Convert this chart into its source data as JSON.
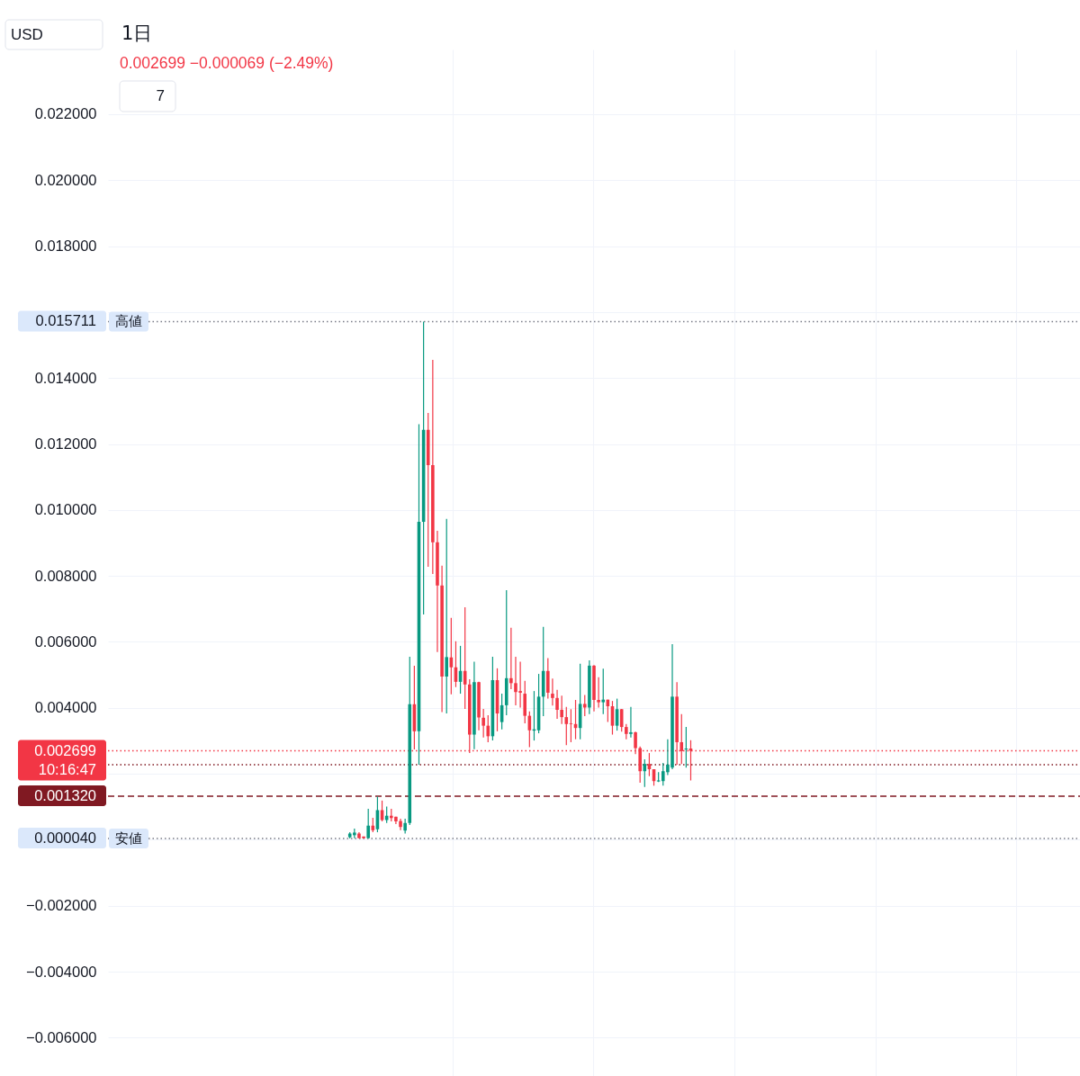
{
  "chart_data": {
    "type": "candlestick",
    "title": "1日",
    "subtitle": "0.002699 −0.000069 (−2.49%)",
    "annotations": [
      "USD",
      "7",
      "0.015711",
      "0.002699",
      "10:16:47",
      "0.001320",
      "0.000040"
    ],
    "categories": [
      null,
      null,
      null,
      null,
      null,
      null,
      null,
      null,
      null,
      null,
      null,
      null,
      null,
      null,
      null,
      null,
      null,
      null,
      null,
      null,
      null,
      null,
      null,
      null,
      null,
      null,
      null,
      null,
      null,
      null,
      null,
      null,
      null,
      null,
      null,
      null,
      null,
      null,
      null,
      null,
      null,
      null,
      null,
      null,
      null,
      null,
      null,
      null,
      null,
      null,
      null,
      null,
      null,
      null,
      null,
      null,
      null,
      null,
      null,
      null,
      null,
      null,
      null,
      null,
      null,
      null,
      null,
      null,
      null,
      null,
      null,
      null,
      null,
      null,
      null,
      null,
      null,
      null,
      null,
      null,
      null,
      null,
      null,
      null,
      null,
      null,
      null,
      null,
      null,
      null,
      null,
      null,
      null,
      null,
      null,
      null,
      null,
      null,
      null,
      null,
      null,
      null,
      null,
      null,
      null,
      null,
      null,
      null,
      null,
      null,
      null,
      null,
      null,
      null,
      null,
      null,
      null,
      null,
      null,
      null,
      null,
      null,
      null,
      null,
      null,
      null,
      null,
      null,
      null,
      null,
      null,
      null,
      null,
      null,
      null,
      null,
      null,
      null,
      null,
      null,
      null,
      null,
      null,
      null,
      null,
      null,
      null,
      null,
      null,
      null,
      null,
      null,
      null,
      null,
      null,
      null,
      null,
      null,
      null,
      null,
      null,
      null,
      null,
      null,
      null,
      null,
      null,
      null,
      null,
      null,
      null,
      null,
      null,
      null,
      null,
      null,
      null,
      null,
      null,
      null,
      null,
      null,
      null,
      null,
      null,
      null,
      null,
      null,
      null,
      null,
      null,
      null,
      null,
      null,
      null,
      null,
      null,
      null,
      null,
      null,
      null,
      null,
      null,
      null,
      null,
      null,
      null,
      null,
      null,
      null,
      null
    ],
    "ohlc": [
      null,
      null,
      null,
      null,
      null,
      null,
      null,
      null,
      null,
      null,
      null,
      null,
      null,
      null,
      null,
      null,
      null,
      null,
      null,
      null,
      null,
      null,
      null,
      null,
      null,
      null,
      null,
      null,
      null,
      null,
      null,
      null,
      null,
      null,
      null,
      null,
      null,
      null,
      null,
      null,
      null,
      null,
      null,
      null,
      null,
      null,
      null,
      null,
      null,
      null,
      null,
      null,
      [
        8e-05,
        0.00023,
        4e-05,
        0.00019
      ],
      [
        0.00014,
        0.00034,
        5e-05,
        0.00022
      ],
      [
        0.00019,
        0.00023,
        5e-05,
        5e-05
      ],
      [
        0.0001,
        0.0001,
        4e-05,
        5e-05
      ],
      [
        5e-05,
        0.00094,
        5e-05,
        0.00043
      ],
      [
        0.00043,
        0.00067,
        0.00023,
        0.00029
      ],
      [
        0.00032,
        0.00131,
        0.00023,
        0.0009
      ],
      [
        0.0009,
        0.00119,
        0.00056,
        0.0006
      ],
      [
        0.0006,
        0.00101,
        0.00051,
        0.00073
      ],
      [
        0.00073,
        0.00094,
        0.00056,
        0.00066
      ],
      [
        0.0007,
        0.0007,
        0.00048,
        0.00056
      ],
      [
        0.00057,
        0.00064,
        0.00029,
        0.00039
      ],
      [
        0.00028,
        0.00064,
        0.00019,
        0.00051
      ],
      [
        0.00051,
        0.00555,
        0.00045,
        0.00411
      ],
      [
        0.00411,
        0.00528,
        0.00274,
        0.00329
      ],
      [
        0.00329,
        0.0126,
        0.00228,
        0.00964
      ],
      [
        0.00964,
        0.015711,
        0.00683,
        0.01243
      ],
      [
        0.01243,
        0.01294,
        0.00828,
        0.01136
      ],
      [
        0.01136,
        0.01455,
        0.00806,
        0.00902
      ],
      [
        0.00902,
        0.00937,
        0.00569,
        0.00771
      ],
      [
        0.00771,
        0.00831,
        0.00387,
        0.00495
      ],
      [
        0.00495,
        0.00973,
        0.00383,
        0.00554
      ],
      [
        0.00553,
        0.00673,
        0.00441,
        0.00523
      ],
      [
        0.00523,
        0.00602,
        0.00463,
        0.00479
      ],
      [
        0.00479,
        0.00588,
        0.00443,
        0.00512
      ],
      [
        0.00512,
        0.00705,
        0.00397,
        0.00471
      ],
      [
        0.00471,
        0.00487,
        0.00263,
        0.00319
      ],
      [
        0.00319,
        0.0054,
        0.00275,
        0.00478
      ],
      [
        0.00478,
        0.00479,
        0.00332,
        0.00371
      ],
      [
        0.0037,
        0.00397,
        0.0031,
        0.00346
      ],
      [
        0.00346,
        0.00378,
        0.00296,
        0.00314
      ],
      [
        0.00314,
        0.00555,
        0.00301,
        0.00484
      ],
      [
        0.00484,
        0.0052,
        0.00329,
        0.00383
      ],
      [
        0.00357,
        0.00443,
        0.00335,
        0.00408
      ],
      [
        0.00408,
        0.00757,
        0.00378,
        0.0049
      ],
      [
        0.0049,
        0.00643,
        0.00457,
        0.00475
      ],
      [
        0.00475,
        0.00555,
        0.00408,
        0.00448
      ],
      [
        0.00451,
        0.0054,
        0.00401,
        0.00446
      ],
      [
        0.00443,
        0.00482,
        0.00353,
        0.00376
      ],
      [
        0.00376,
        0.00389,
        0.00281,
        0.00332
      ],
      [
        0.00331,
        0.00451,
        0.00301,
        0.00335
      ],
      [
        0.00332,
        0.00503,
        0.00323,
        0.00434
      ],
      [
        0.00434,
        0.00646,
        0.00375,
        0.00512
      ],
      [
        0.00512,
        0.00551,
        0.00428,
        0.00446
      ],
      [
        0.00443,
        0.00489,
        0.00407,
        0.0043
      ],
      [
        0.0043,
        0.00455,
        0.00367,
        0.00394
      ],
      [
        0.00394,
        0.00437,
        0.00351,
        0.00372
      ],
      [
        0.00372,
        0.00403,
        0.00287,
        0.00351
      ],
      [
        0.00353,
        0.00396,
        0.00296,
        0.00351
      ],
      [
        0.00351,
        0.00424,
        0.00305,
        0.00339
      ],
      [
        0.00339,
        0.00534,
        0.00305,
        0.00412
      ],
      [
        0.00412,
        0.00439,
        0.00375,
        0.00401
      ],
      [
        0.00401,
        0.00544,
        0.00381,
        0.00528
      ],
      [
        0.00528,
        0.0053,
        0.00389,
        0.00424
      ],
      [
        0.00424,
        0.00493,
        0.00401,
        0.00417
      ],
      [
        0.00417,
        0.00519,
        0.00381,
        0.00425
      ],
      [
        0.00425,
        0.00425,
        0.00357,
        0.00405
      ],
      [
        0.00405,
        0.00421,
        0.00319,
        0.00346
      ],
      [
        0.00346,
        0.00428,
        0.00331,
        0.00396
      ],
      [
        0.00396,
        0.00397,
        0.00328,
        0.00342
      ],
      [
        0.00342,
        0.00351,
        0.00305,
        0.00321
      ],
      [
        0.00321,
        0.00403,
        0.0031,
        0.00326
      ],
      [
        0.00326,
        0.00328,
        0.0026,
        0.00278
      ],
      [
        0.00278,
        0.00283,
        0.00173,
        0.00208
      ],
      [
        0.00208,
        0.00244,
        0.0016,
        0.0023
      ],
      [
        0.0023,
        0.00263,
        0.00193,
        0.00214
      ],
      [
        0.00214,
        0.00214,
        0.00164,
        0.00178
      ],
      [
        0.00177,
        0.00205,
        0.00175,
        0.0018
      ],
      [
        0.00178,
        0.00233,
        0.00164,
        0.00208
      ],
      [
        0.00205,
        0.00305,
        0.00196,
        0.00228
      ],
      [
        0.00219,
        0.00593,
        0.00214,
        0.00434
      ],
      [
        0.00434,
        0.00478,
        0.00228,
        0.00296
      ],
      [
        0.00296,
        0.00381,
        0.0023,
        0.00269
      ],
      [
        0.00274,
        0.00342,
        0.00219,
        0.002768
      ],
      [
        0.002768,
        0.00302,
        0.0018,
        0.002699
      ],
      null,
      null,
      null,
      null,
      null,
      null,
      null,
      null,
      null,
      null,
      null,
      null,
      null,
      null,
      null,
      null,
      null,
      null,
      null,
      null,
      null,
      null,
      null,
      null,
      null,
      null,
      null,
      null,
      null,
      null,
      null,
      null,
      null,
      null,
      null,
      null,
      null,
      null,
      null,
      null,
      null,
      null,
      null,
      null,
      null,
      null,
      null,
      null,
      null,
      null,
      null,
      null,
      null,
      null,
      null,
      null,
      null,
      null,
      null,
      null,
      null,
      null,
      null,
      null,
      null,
      null,
      null,
      null,
      null,
      null,
      null,
      null,
      null,
      null,
      null,
      null,
      null,
      null,
      null,
      null,
      null,
      null,
      null,
      null
    ],
    "colors": [
      null,
      null,
      null,
      null,
      null,
      null,
      null,
      null,
      null,
      null,
      null,
      null,
      null,
      null,
      null,
      null,
      null,
      null,
      null,
      null,
      null,
      null,
      null,
      null,
      null,
      null,
      null,
      null,
      null,
      null,
      null,
      null,
      null,
      null,
      null,
      null,
      null,
      null,
      null,
      null,
      null,
      null,
      null,
      null,
      null,
      null,
      null,
      null,
      null,
      null,
      null,
      null,
      "#089981",
      "#089981",
      "#f23645",
      "#f23645",
      "#089981",
      "#f23645",
      "#089981",
      "#f23645",
      "#089981",
      "#f23645",
      "#f23645",
      "#f23645",
      "#089981",
      "#089981",
      "#f23645",
      "#089981",
      "#089981",
      "#f23645",
      "#f23645",
      "#f23645",
      "#f23645",
      "#089981",
      "#f23645",
      "#f23645",
      "#089981",
      "#f23645",
      "#f23645",
      "#089981",
      "#f23645",
      "#f23645",
      "#f23645",
      "#089981",
      "#f23645",
      "#089981",
      "#089981",
      "#f23645",
      "#f23645",
      "#f23645",
      "#f23645",
      "#f23645",
      "#089981",
      "#089981",
      "#089981",
      "#f23645",
      "#f23645",
      "#f23645",
      "#f23645",
      "#f23645",
      "#f23645",
      "#f23645",
      "#089981",
      "#f23645",
      "#089981",
      "#f23645",
      "#f23645",
      "#089981",
      "#f23645",
      "#f23645",
      "#089981",
      "#f23645",
      "#f23645",
      "#089981",
      "#f23645",
      "#f23645",
      "#089981",
      "#f23645",
      "#f23645",
      "#089981",
      "#089981",
      "#089981",
      "#089981",
      "#f23645",
      "#f23645",
      "#089981",
      "#f23645",
      null,
      null,
      null,
      null,
      null,
      null,
      null,
      null,
      null,
      null,
      null,
      null,
      null,
      null,
      null,
      null,
      null,
      null,
      null,
      null,
      null,
      null,
      null,
      null,
      null,
      null,
      null,
      null,
      null,
      null,
      null,
      null,
      null,
      null,
      null,
      null,
      null,
      null,
      null,
      null,
      null,
      null,
      null,
      null,
      null,
      null,
      null,
      null,
      null,
      null,
      null,
      null,
      null,
      null,
      null,
      null,
      null,
      null,
      null,
      null,
      null,
      null,
      null,
      null,
      null,
      null,
      null,
      null,
      null,
      null,
      null,
      null,
      null,
      null,
      null,
      null,
      null,
      null,
      null,
      null,
      null,
      null,
      null,
      null
    ],
    "ylim": [
      -0.00716,
      0.02396
    ],
    "yticks": [
      {
        "value": -0.006,
        "label": "−0.006000"
      },
      {
        "value": -0.004,
        "label": "−0.004000"
      },
      {
        "value": -0.002,
        "label": "−0.002000"
      },
      {
        "value": 0,
        "label": null
      },
      {
        "value": 0.002,
        "label": null
      },
      {
        "value": 0.004,
        "label": "0.004000"
      },
      {
        "value": 0.006,
        "label": "0.006000"
      },
      {
        "value": 0.008,
        "label": "0.008000"
      },
      {
        "value": 0.01,
        "label": "0.010000"
      },
      {
        "value": 0.012,
        "label": "0.012000"
      },
      {
        "value": 0.014,
        "label": "0.014000"
      },
      {
        "value": 0.016,
        "label": null
      },
      {
        "value": 0.018,
        "label": "0.018000"
      },
      {
        "value": 0.02,
        "label": "0.020000"
      },
      {
        "value": 0.022,
        "label": "0.022000"
      }
    ],
    "grid": true,
    "tick_labels": "y",
    "ref_lines": [
      {
        "axis": "y",
        "value": 0.015711,
        "label": "高値",
        "color": "#787b86",
        "line_style": "dotted"
      },
      {
        "axis": "y",
        "value": 4e-05,
        "label": "安値",
        "color": "#787b86",
        "line_style": "dotted"
      },
      {
        "axis": "y",
        "value": 0.00228,
        "color": "#801922",
        "line_style": "dotted"
      },
      {
        "axis": "y",
        "value": 0.002699,
        "color": "#f23645",
        "line_style": "dotted"
      },
      {
        "axis": "y",
        "value": 0.00132,
        "color": "#801922",
        "line_style": "dashed"
      }
    ]
  }
}
